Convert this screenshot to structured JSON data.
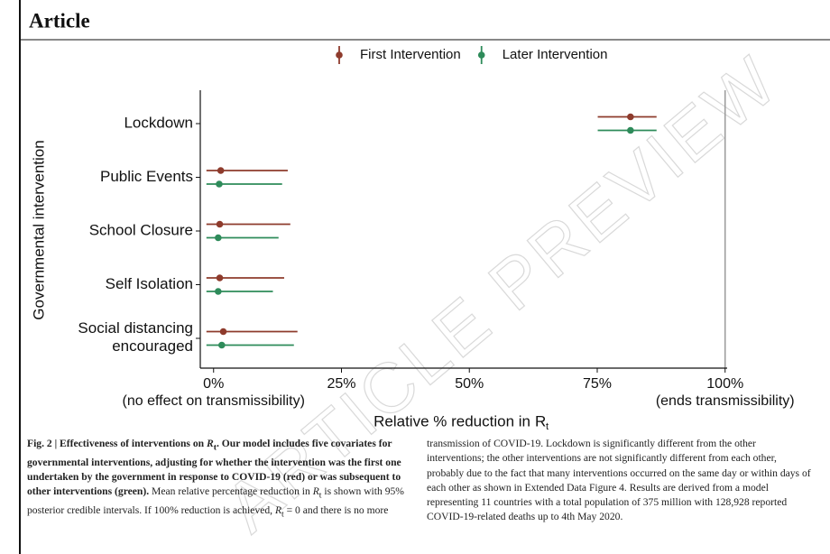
{
  "header": {
    "title": "Article"
  },
  "watermark": "ARTICLE PREVIEW",
  "chart_data": {
    "type": "errorbar",
    "ylabel": "Governmental intervention",
    "xlabel": "Relative % reduction in",
    "xlabel_symbol": "R",
    "xlabel_subscript": "t",
    "categories": [
      "Lockdown",
      "Public Events",
      "School Closure",
      "Self Isolation",
      "Social distancing\nencouraged"
    ],
    "series": [
      {
        "name": "First Intervention",
        "color": "#8e3b2c",
        "values": [
          81.5,
          1.4,
          1.2,
          1.2,
          1.9
        ],
        "lower": [
          75.1,
          -1.4,
          -1.4,
          -1.4,
          -1.4
        ],
        "upper": [
          86.6,
          14.5,
          15.0,
          13.8,
          16.4
        ]
      },
      {
        "name": "Later Intervention",
        "color": "#2e8b5a",
        "values": [
          81.5,
          1.1,
          0.9,
          0.9,
          1.6
        ],
        "lower": [
          75.1,
          -1.4,
          -1.4,
          -1.4,
          -1.4
        ],
        "upper": [
          86.6,
          13.4,
          12.7,
          11.6,
          15.7
        ]
      }
    ],
    "xlim": [
      -2.6,
      100.4
    ],
    "xticks": [
      {
        "value": 0,
        "label": "0%"
      },
      {
        "value": 25,
        "label": "25%"
      },
      {
        "value": 50,
        "label": "50%"
      },
      {
        "value": 75,
        "label": "75%"
      },
      {
        "value": 100,
        "label": "100%"
      }
    ],
    "xtick_notes": [
      "(no effect on transmissibility)",
      "(ends transmissibility)"
    ],
    "legend": "top"
  },
  "caption": {
    "left": [
      "Fig. 2 | Effectiveness of interventions on ",
      "R",
      "t",
      ". Our model includes five covariates for governmental interventions, adjusting for whether the intervention was the first one undertaken by the government in response to COVID-19 (red) or was subsequent to other interventions (green).",
      " Mean relative percentage reduction in ",
      "R",
      "t",
      " is shown with 95% posterior credible intervals. If 100% reduction is achieved, ",
      "R",
      "t",
      " = 0 and there is no more"
    ],
    "right": "transmission of COVID-19. Lockdown is significantly different from the other interventions; the other interventions are not significantly different from each other, probably due to the fact that many interventions occurred on the same day or within days of each other as shown in Extended Data Figure 4. Results are derived from a model representing 11 countries with a total population of 375 million with 128,928 reported COVID-19-related deaths up to 4th May 2020."
  }
}
